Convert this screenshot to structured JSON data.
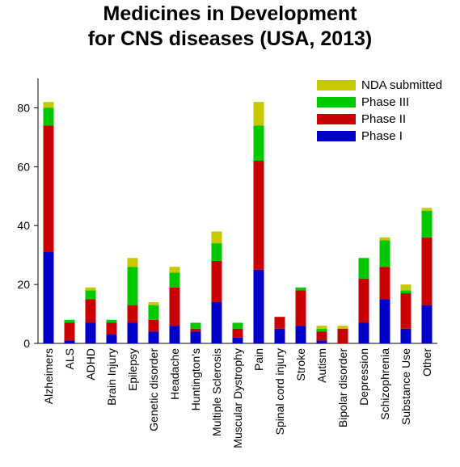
{
  "title": {
    "line1": "Medicines in Development",
    "line2": "for CNS diseases (USA, 2013)"
  },
  "chart_data": {
    "type": "bar",
    "stacked": true,
    "title": "Medicines in Development for CNS diseases (USA, 2013)",
    "xlabel": "",
    "ylabel": "",
    "ylim": [
      0,
      90
    ],
    "yticks": [
      0,
      20,
      40,
      60,
      80
    ],
    "grid": false,
    "legend_position": "top-right",
    "categories": [
      "Alzheimers",
      "ALS",
      "ADHD",
      "Brain Injury",
      "Epilepsy",
      "Genetic disorder",
      "Headache",
      "Huntington's",
      "Multiple Sclerosis",
      "Muscular Dystrophy",
      "Pain",
      "Spinal cord injury",
      "Stroke",
      "Autism",
      "Bipolar disorder",
      "Depression",
      "Schizophrenia",
      "Substance Use",
      "Other"
    ],
    "series": [
      {
        "name": "Phase I",
        "color": "#0000c8",
        "values": [
          31,
          1,
          7,
          3,
          7,
          4,
          6,
          4,
          14,
          2,
          25,
          5,
          6,
          1,
          0,
          7,
          15,
          5,
          13
        ]
      },
      {
        "name": "Phase II",
        "color": "#c80000",
        "values": [
          43,
          6,
          8,
          4,
          6,
          4,
          13,
          1,
          14,
          3,
          37,
          4,
          12,
          3,
          5,
          15,
          11,
          12,
          23
        ]
      },
      {
        "name": "Phase III",
        "color": "#00c800",
        "values": [
          6,
          1,
          3,
          1,
          13,
          5,
          5,
          2,
          6,
          2,
          12,
          0,
          1,
          1,
          0,
          7,
          9,
          1,
          9
        ]
      },
      {
        "name": "NDA submitted",
        "color": "#c8c800",
        "values": [
          2,
          0,
          1,
          0,
          3,
          1,
          2,
          0,
          4,
          0,
          8,
          0,
          0,
          1,
          1,
          0,
          1,
          2,
          1
        ]
      }
    ],
    "legend_order": [
      "NDA submitted",
      "Phase III",
      "Phase II",
      "Phase I"
    ]
  }
}
